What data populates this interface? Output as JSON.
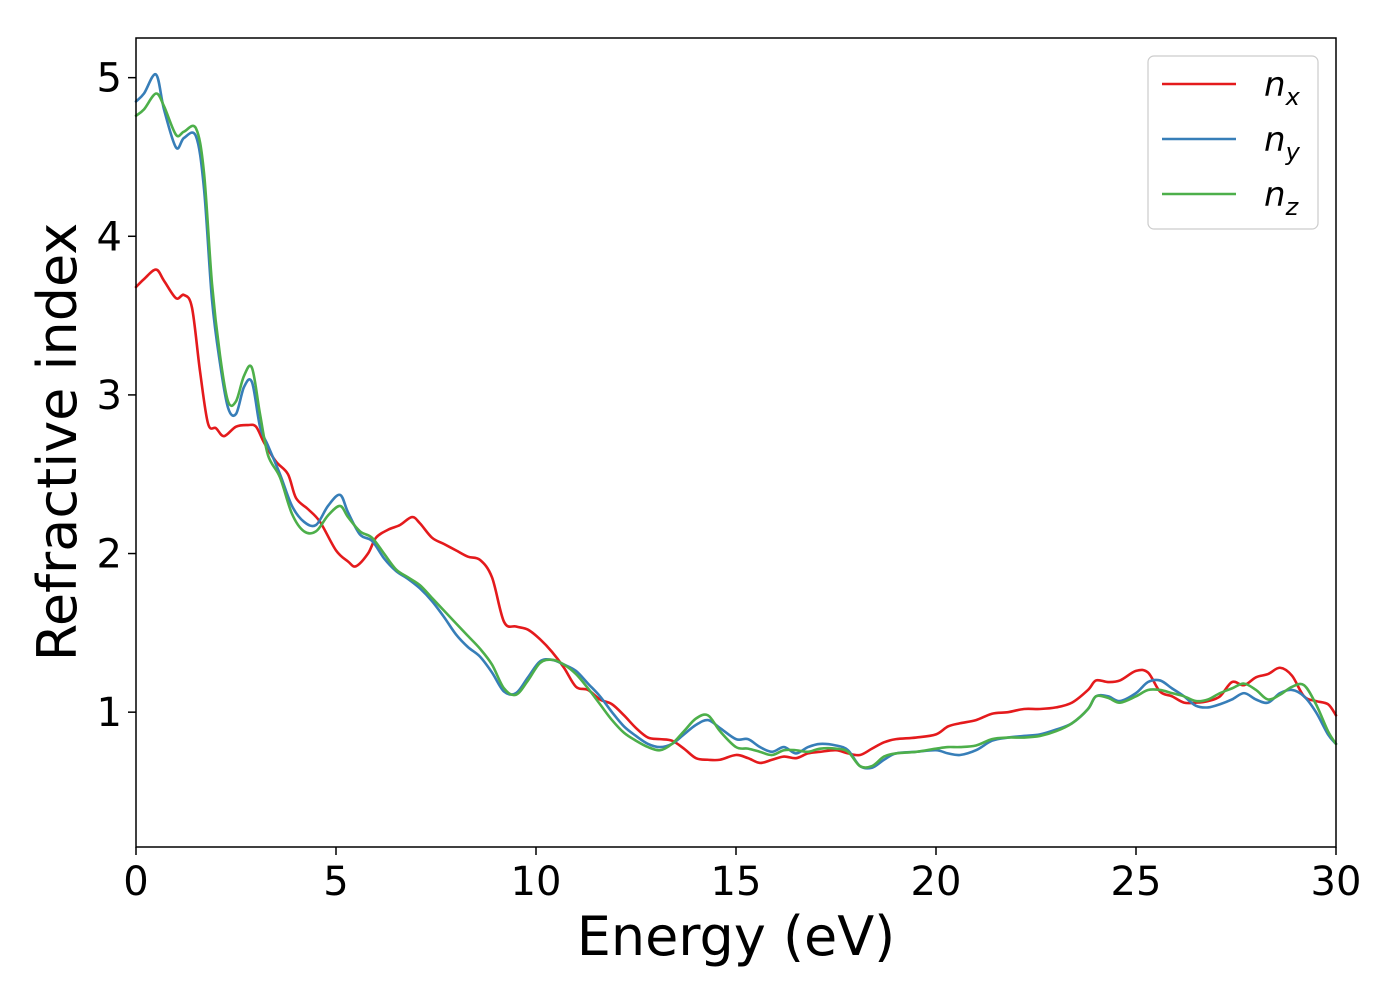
{
  "chart_data": {
    "type": "line",
    "title": "",
    "xlabel": "Energy (eV)",
    "ylabel": "Refractive index",
    "xlim": [
      0,
      30
    ],
    "ylim": [
      0.15,
      5.25
    ],
    "xticks": [
      0,
      5,
      10,
      15,
      20,
      25,
      30
    ],
    "xtick_labels": [
      "0",
      "5",
      "10",
      "15",
      "20",
      "25",
      "30"
    ],
    "yticks": [
      1,
      2,
      3,
      4,
      5
    ],
    "ytick_labels": [
      "1",
      "2",
      "3",
      "4",
      "5"
    ],
    "grid": false,
    "legend_position": "top-right",
    "series": [
      {
        "name": "n_x",
        "label_main": "n",
        "label_sub": "x",
        "color": "#e41a1c",
        "x": [
          0,
          0.2,
          0.5,
          0.7,
          1.0,
          1.2,
          1.4,
          1.6,
          1.8,
          2.0,
          2.2,
          2.5,
          2.8,
          3.0,
          3.2,
          3.5,
          3.8,
          4.0,
          4.3,
          4.6,
          5.0,
          5.3,
          5.5,
          5.8,
          6.0,
          6.3,
          6.6,
          6.9,
          7.1,
          7.4,
          7.7,
          8.0,
          8.3,
          8.6,
          8.9,
          9.2,
          9.5,
          9.8,
          10.1,
          10.4,
          10.7,
          11.0,
          11.3,
          11.6,
          11.9,
          12.2,
          12.5,
          12.8,
          13.1,
          13.4,
          13.7,
          14.0,
          14.3,
          14.6,
          15.0,
          15.3,
          15.6,
          15.9,
          16.2,
          16.5,
          16.8,
          17.1,
          17.5,
          17.8,
          18.1,
          18.4,
          18.7,
          19.0,
          19.5,
          20.0,
          20.3,
          20.6,
          21.0,
          21.4,
          21.8,
          22.2,
          22.6,
          23.0,
          23.4,
          23.8,
          24.0,
          24.3,
          24.6,
          25.0,
          25.3,
          25.6,
          25.9,
          26.2,
          26.5,
          26.8,
          27.1,
          27.4,
          27.7,
          28.0,
          28.3,
          28.6,
          28.9,
          29.2,
          29.5,
          29.8,
          30.0
        ],
        "y": [
          3.68,
          3.73,
          3.79,
          3.72,
          3.61,
          3.63,
          3.55,
          3.15,
          2.82,
          2.79,
          2.74,
          2.8,
          2.81,
          2.8,
          2.7,
          2.58,
          2.5,
          2.35,
          2.28,
          2.2,
          2.02,
          1.95,
          1.92,
          2.0,
          2.1,
          2.15,
          2.18,
          2.23,
          2.19,
          2.1,
          2.06,
          2.02,
          1.98,
          1.96,
          1.85,
          1.57,
          1.54,
          1.52,
          1.46,
          1.38,
          1.28,
          1.16,
          1.14,
          1.08,
          1.05,
          0.98,
          0.9,
          0.84,
          0.83,
          0.82,
          0.77,
          0.71,
          0.7,
          0.7,
          0.73,
          0.71,
          0.68,
          0.7,
          0.72,
          0.71,
          0.74,
          0.75,
          0.76,
          0.74,
          0.73,
          0.77,
          0.81,
          0.83,
          0.84,
          0.86,
          0.91,
          0.93,
          0.95,
          0.99,
          1.0,
          1.02,
          1.02,
          1.03,
          1.06,
          1.14,
          1.2,
          1.19,
          1.2,
          1.26,
          1.25,
          1.13,
          1.1,
          1.06,
          1.06,
          1.07,
          1.1,
          1.19,
          1.17,
          1.22,
          1.24,
          1.28,
          1.23,
          1.1,
          1.07,
          1.05,
          0.98
        ]
      },
      {
        "name": "n_y",
        "label_main": "n",
        "label_sub": "y",
        "color": "#377eb8",
        "x": [
          0,
          0.2,
          0.5,
          0.7,
          1.0,
          1.2,
          1.5,
          1.7,
          1.9,
          2.1,
          2.3,
          2.5,
          2.7,
          2.9,
          3.1,
          3.3,
          3.6,
          3.9,
          4.2,
          4.5,
          4.8,
          5.1,
          5.3,
          5.6,
          5.9,
          6.2,
          6.5,
          6.8,
          7.1,
          7.4,
          7.7,
          8.0,
          8.3,
          8.6,
          8.9,
          9.2,
          9.5,
          9.8,
          10.1,
          10.4,
          10.7,
          11.0,
          11.3,
          11.6,
          11.9,
          12.2,
          12.5,
          12.8,
          13.1,
          13.4,
          13.7,
          14.0,
          14.3,
          14.6,
          15.0,
          15.3,
          15.6,
          15.9,
          16.2,
          16.5,
          16.8,
          17.1,
          17.5,
          17.8,
          18.1,
          18.4,
          18.7,
          19.0,
          19.5,
          20.0,
          20.3,
          20.6,
          21.0,
          21.4,
          21.8,
          22.2,
          22.6,
          23.0,
          23.4,
          23.8,
          24.0,
          24.3,
          24.6,
          25.0,
          25.3,
          25.6,
          25.9,
          26.2,
          26.5,
          26.8,
          27.1,
          27.4,
          27.7,
          28.0,
          28.3,
          28.6,
          28.9,
          29.2,
          29.5,
          29.8,
          30.0
        ],
        "y": [
          4.85,
          4.9,
          5.02,
          4.8,
          4.56,
          4.62,
          4.63,
          4.3,
          3.6,
          3.2,
          2.92,
          2.88,
          3.05,
          3.08,
          2.8,
          2.68,
          2.5,
          2.3,
          2.2,
          2.18,
          2.3,
          2.37,
          2.26,
          2.12,
          2.08,
          1.97,
          1.89,
          1.84,
          1.78,
          1.7,
          1.6,
          1.49,
          1.41,
          1.35,
          1.25,
          1.13,
          1.12,
          1.22,
          1.32,
          1.33,
          1.3,
          1.26,
          1.18,
          1.1,
          1.0,
          0.91,
          0.85,
          0.8,
          0.78,
          0.8,
          0.86,
          0.92,
          0.95,
          0.9,
          0.83,
          0.83,
          0.78,
          0.75,
          0.78,
          0.74,
          0.78,
          0.8,
          0.79,
          0.76,
          0.66,
          0.65,
          0.7,
          0.74,
          0.75,
          0.76,
          0.74,
          0.73,
          0.76,
          0.82,
          0.84,
          0.85,
          0.86,
          0.89,
          0.93,
          1.02,
          1.1,
          1.1,
          1.07,
          1.12,
          1.19,
          1.2,
          1.15,
          1.1,
          1.04,
          1.03,
          1.05,
          1.08,
          1.12,
          1.08,
          1.06,
          1.12,
          1.14,
          1.1,
          1.0,
          0.86,
          0.8
        ]
      },
      {
        "name": "n_z",
        "label_main": "n",
        "label_sub": "z",
        "color": "#4daf4a",
        "x": [
          0,
          0.2,
          0.5,
          0.7,
          1.0,
          1.2,
          1.5,
          1.7,
          1.9,
          2.1,
          2.3,
          2.5,
          2.7,
          2.9,
          3.1,
          3.3,
          3.6,
          3.9,
          4.2,
          4.5,
          4.8,
          5.1,
          5.3,
          5.6,
          5.9,
          6.2,
          6.5,
          6.8,
          7.1,
          7.4,
          7.7,
          8.0,
          8.3,
          8.6,
          8.9,
          9.2,
          9.5,
          9.8,
          10.1,
          10.4,
          10.7,
          11.0,
          11.3,
          11.6,
          11.9,
          12.2,
          12.5,
          12.8,
          13.1,
          13.4,
          13.7,
          14.0,
          14.3,
          14.6,
          15.0,
          15.3,
          15.6,
          15.9,
          16.2,
          16.5,
          16.8,
          17.1,
          17.5,
          17.8,
          18.1,
          18.4,
          18.7,
          19.0,
          19.5,
          20.0,
          20.3,
          20.6,
          21.0,
          21.4,
          21.8,
          22.2,
          22.6,
          23.0,
          23.4,
          23.8,
          24.0,
          24.3,
          24.6,
          25.0,
          25.3,
          25.6,
          25.9,
          26.2,
          26.5,
          26.8,
          27.1,
          27.4,
          27.7,
          28.0,
          28.3,
          28.6,
          28.9,
          29.2,
          29.5,
          29.8,
          30.0
        ],
        "y": [
          4.76,
          4.8,
          4.9,
          4.82,
          4.64,
          4.66,
          4.68,
          4.4,
          3.7,
          3.25,
          2.96,
          2.96,
          3.12,
          3.17,
          2.88,
          2.62,
          2.48,
          2.25,
          2.14,
          2.14,
          2.24,
          2.3,
          2.23,
          2.14,
          2.1,
          2.0,
          1.9,
          1.85,
          1.8,
          1.72,
          1.64,
          1.56,
          1.48,
          1.4,
          1.3,
          1.15,
          1.11,
          1.2,
          1.31,
          1.33,
          1.3,
          1.24,
          1.15,
          1.05,
          0.95,
          0.87,
          0.82,
          0.78,
          0.76,
          0.8,
          0.88,
          0.96,
          0.98,
          0.88,
          0.78,
          0.77,
          0.75,
          0.73,
          0.76,
          0.76,
          0.75,
          0.77,
          0.77,
          0.75,
          0.66,
          0.66,
          0.72,
          0.74,
          0.75,
          0.77,
          0.78,
          0.78,
          0.79,
          0.83,
          0.84,
          0.84,
          0.85,
          0.88,
          0.93,
          1.02,
          1.1,
          1.09,
          1.06,
          1.1,
          1.14,
          1.14,
          1.12,
          1.1,
          1.07,
          1.08,
          1.12,
          1.15,
          1.18,
          1.14,
          1.08,
          1.11,
          1.16,
          1.17,
          1.05,
          0.88,
          0.8
        ]
      }
    ]
  }
}
